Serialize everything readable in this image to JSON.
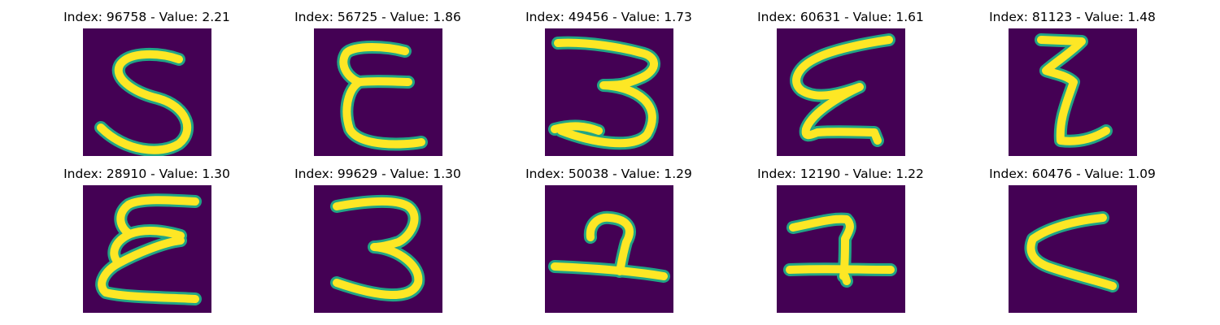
{
  "background": "#440154",
  "stroke_color": "#fde725",
  "edge_color": "#21a585",
  "panels": [
    {
      "title": "Index: 96758 - Value: 2.21",
      "glyph": "5"
    },
    {
      "title": "Index: 56725 - Value: 1.86",
      "glyph": "epsilon"
    },
    {
      "title": "Index: 49456 - Value: 1.73",
      "glyph": "3"
    },
    {
      "title": "Index: 60631 - Value: 1.61",
      "glyph": "epsilon-slanted"
    },
    {
      "title": "Index: 81123 - Value: 1.48",
      "glyph": "zigzag"
    },
    {
      "title": "Index: 28910 - Value: 1.30",
      "glyph": "epsilon"
    },
    {
      "title": "Index: 99629 - Value: 1.30",
      "glyph": "3"
    },
    {
      "title": "Index: 50038 - Value: 1.29",
      "glyph": "2"
    },
    {
      "title": "Index: 12190 - Value: 1.22",
      "glyph": "2"
    },
    {
      "title": "Index: 60476 - Value: 1.09",
      "glyph": "less-than"
    }
  ]
}
